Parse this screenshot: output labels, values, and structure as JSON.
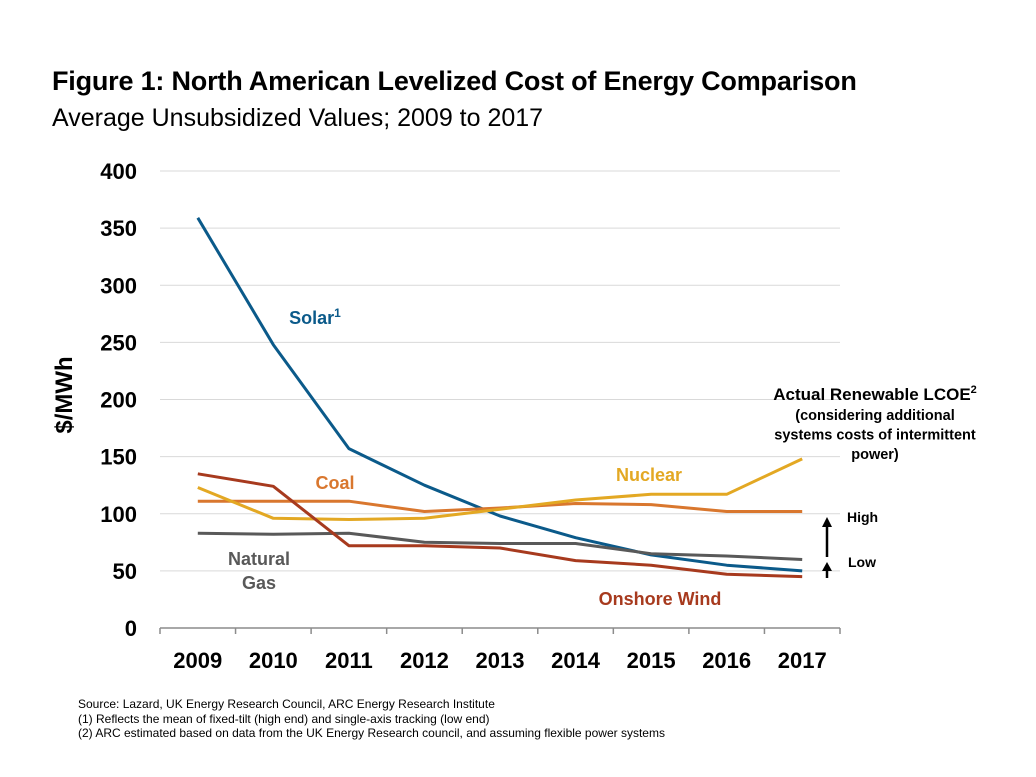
{
  "header": {
    "title": "Figure 1: North American Levelized Cost of Energy Comparison",
    "subtitle": "Average Unsubsidized Values; 2009 to 2017"
  },
  "chart_data": {
    "type": "line",
    "title": "Figure 1: North American Levelized Cost of Energy Comparison",
    "subtitle": "Average Unsubsidized Values; 2009 to 2017",
    "xlabel": "",
    "ylabel": "$/MWh",
    "ylim": [
      0,
      400
    ],
    "yticks": [
      0,
      50,
      100,
      150,
      200,
      250,
      300,
      350,
      400
    ],
    "categories": [
      "2009",
      "2010",
      "2011",
      "2012",
      "2013",
      "2014",
      "2015",
      "2016",
      "2017"
    ],
    "grid": true,
    "series": [
      {
        "name": "Solar",
        "label_sup": "1",
        "color": "#0b5a8a",
        "values": [
          359,
          248,
          157,
          125,
          98,
          79,
          64,
          55,
          50
        ]
      },
      {
        "name": "Coal",
        "color": "#d9772e",
        "values": [
          111,
          111,
          111,
          102,
          105,
          109,
          108,
          102,
          102
        ]
      },
      {
        "name": "Nuclear",
        "color": "#e3a823",
        "values": [
          123,
          96,
          95,
          96,
          104,
          112,
          117,
          117,
          148
        ]
      },
      {
        "name": "Natural Gas",
        "label_lines": [
          "Natural",
          "Gas"
        ],
        "color": "#595959",
        "values": [
          83,
          82,
          83,
          75,
          74,
          74,
          65,
          63,
          60
        ]
      },
      {
        "name": "Onshore Wind",
        "color": "#a73a1e",
        "values": [
          135,
          124,
          72,
          72,
          70,
          59,
          55,
          47,
          45
        ]
      }
    ],
    "annotation": {
      "title": "Actual Renewable LCOE",
      "title_sup": "2",
      "lines": [
        "(considering additional",
        "systems costs of intermittent",
        "power)"
      ],
      "high_label": "High",
      "low_label": "Low"
    }
  },
  "sources": [
    "Source: Lazard, UK Energy Research Council, ARC Energy Research Institute",
    "(1) Reflects the mean of fixed-tilt (high end) and single-axis tracking (low end)",
    "(2) ARC estimated based on data from the UK Energy Research council, and assuming flexible power systems"
  ]
}
